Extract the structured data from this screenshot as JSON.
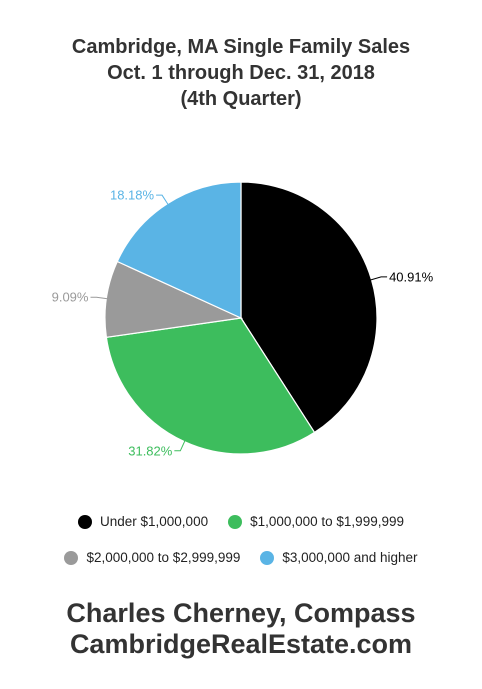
{
  "title_lines": [
    "Cambridge, MA Single Family Sales",
    "Oct. 1 through Dec. 31, 2018",
    "(4th Quarter)"
  ],
  "chart_data": {
    "type": "pie",
    "categories": [
      "Under $1,000,000",
      "$1,000,000 to $1,999,999",
      "$2,000,000 to $2,999,999",
      "$3,000,000 and higher"
    ],
    "values": [
      40.91,
      31.82,
      9.09,
      18.18
    ],
    "labels": [
      "40.91%",
      "31.82%",
      "9.09%",
      "18.18%"
    ],
    "colors": [
      "#000000",
      "#3dbd5d",
      "#9a9a9a",
      "#5ab4e5"
    ],
    "label_colors": [
      "#000000",
      "#3dbd5d",
      "#9a9a9a",
      "#5ab4e5"
    ],
    "legend_position": "bottom"
  },
  "footer": {
    "line1": "Charles Cherney, Compass",
    "line2": "CambridgeRealEstate.com"
  }
}
